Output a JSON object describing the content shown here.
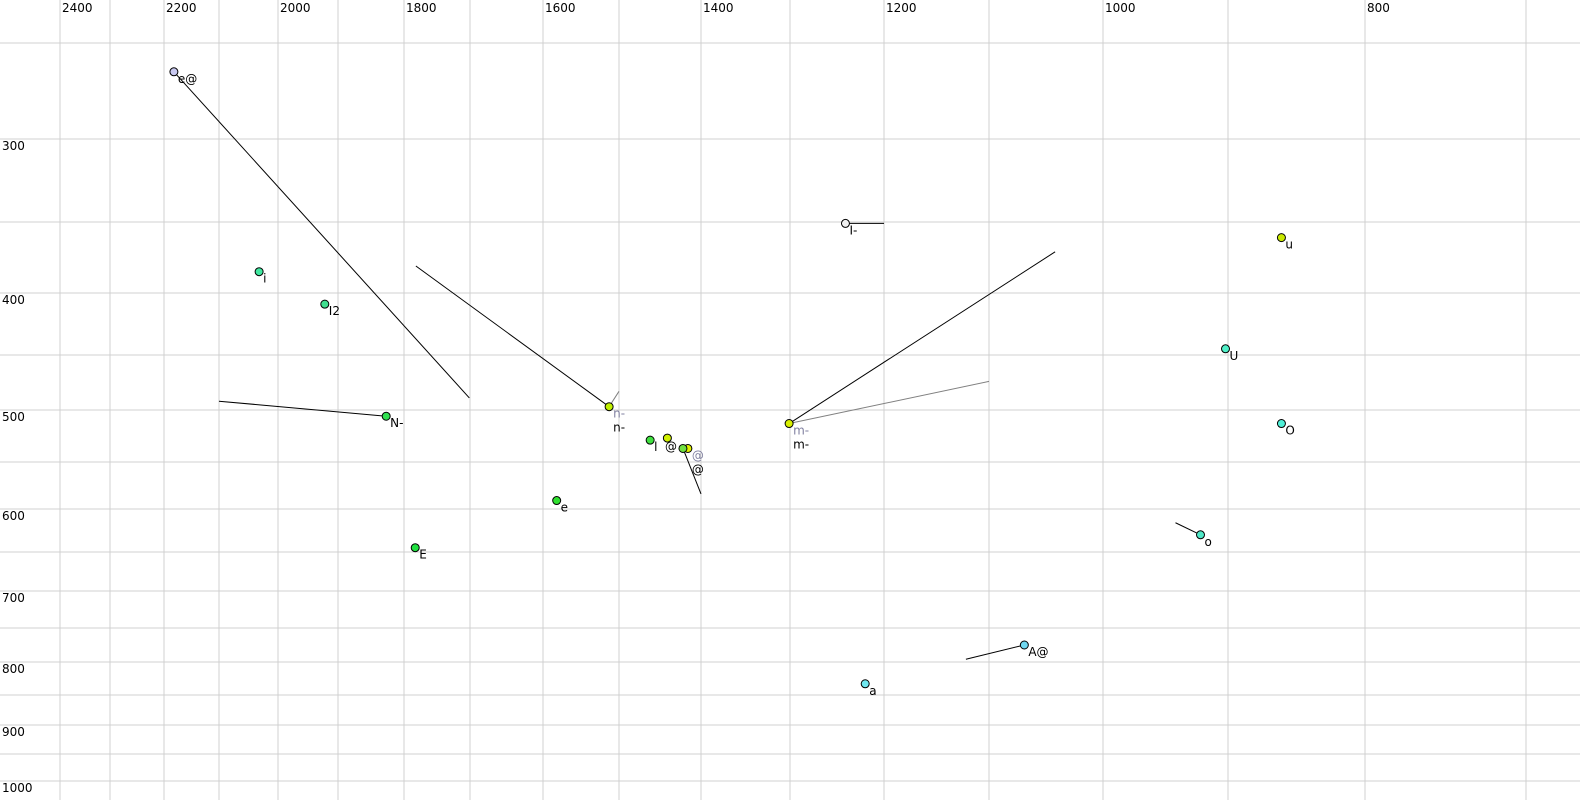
{
  "chart_data": {
    "type": "scatter",
    "title": "",
    "xlabel": "",
    "ylabel": "",
    "x_axis": {
      "reversed": true,
      "scale": "nonlinear",
      "range": [
        2500,
        700
      ],
      "tick_labels": [
        "2400",
        "2200",
        "2000",
        "1800",
        "1600",
        "1400",
        "1200",
        "1000",
        "800"
      ],
      "grid_step": 100
    },
    "y_axis": {
      "reversed": false,
      "scale": "nonlinear",
      "range": [
        250,
        1000
      ],
      "tick_labels": [
        "300",
        "400",
        "500",
        "600",
        "700",
        "800",
        "900",
        "1000"
      ],
      "grid_step": 50
    },
    "grid": true,
    "colors": {
      "grid": "#d0d0d0",
      "trajectory": "#000000",
      "trajectory_secondary": "#808080",
      "label_secondary": "#8080a0"
    },
    "points": [
      {
        "label": "e@",
        "f2": 2182,
        "f1": 265,
        "color": "#c8c8f0",
        "traj": [
          1701,
          489
        ]
      },
      {
        "label": "i",
        "f2": 2032,
        "f1": 385,
        "color": "#40e8a0"
      },
      {
        "label": "I2",
        "f2": 1922,
        "f1": 409,
        "color": "#40e090"
      },
      {
        "label": "N-",
        "f2": 1827,
        "f1": 506,
        "color": "#30e050",
        "traj": [
          2100,
          492
        ]
      },
      {
        "label": "E",
        "f2": 1783,
        "f1": 645,
        "color": "#20e040"
      },
      {
        "label": "e",
        "f2": 1582,
        "f1": 591,
        "color": "#30e030"
      },
      {
        "label": "n-",
        "f2": 1513,
        "f1": 497,
        "color": "#c0f000",
        "traj": [
          1782,
          381
        ],
        "traj2": [
          1500,
          483
        ],
        "label2": "n-"
      },
      {
        "label": "l",
        "f2": 1462,
        "f1": 529,
        "color": "#40e040"
      },
      {
        "label": "",
        "f2": 1441,
        "f1": 527,
        "color": "#d0f000"
      },
      {
        "label": "@",
        "f2": 1416,
        "f1": 537,
        "color": "#e0f000",
        "label2": "@"
      },
      {
        "label": "@",
        "f2": 1422,
        "f1": 537,
        "color": "#70e040",
        "traj": [
          1400,
          584
        ]
      },
      {
        "label": "m-",
        "f2": 1301,
        "f1": 513,
        "color": "#d8f000",
        "traj": [
          1042,
          371
        ],
        "traj2": [
          1100,
          474
        ],
        "label2": "m-"
      },
      {
        "label": "I-",
        "f2": 1241,
        "f1": 351,
        "color": "#f0f0f0",
        "traj": [
          1200,
          351
        ]
      },
      {
        "label": "u",
        "f2": 861,
        "f1": 361,
        "color": "#c8e800"
      },
      {
        "label": "U",
        "f2": 902,
        "f1": 445,
        "color": "#50f0c8"
      },
      {
        "label": "O",
        "f2": 861,
        "f1": 513,
        "color": "#50f0d8"
      },
      {
        "label": "o",
        "f2": 922,
        "f1": 630,
        "color": "#50e8c8",
        "traj": [
          942,
          616
        ]
      },
      {
        "label": "A@",
        "f2": 1069,
        "f1": 775,
        "color": "#70d8f0",
        "traj": [
          1122,
          796
        ]
      },
      {
        "label": "a",
        "f2": 1220,
        "f1": 833,
        "color": "#70e8f0"
      }
    ]
  }
}
